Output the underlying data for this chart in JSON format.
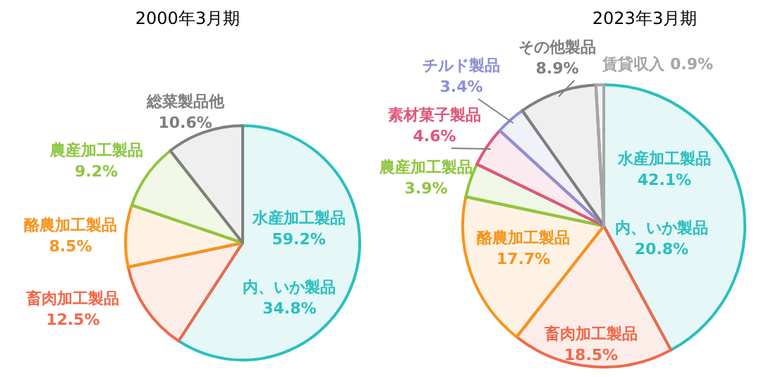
{
  "chart_data": [
    {
      "type": "pie",
      "title": "2000年3月期",
      "categories": [
        "水産加工製品",
        "畜肉加工製品",
        "酪農加工製品",
        "農産加工製品",
        "総菜製品他"
      ],
      "values": [
        59.2,
        12.5,
        8.5,
        9.2,
        10.6
      ],
      "colors": [
        "#2bbfbf",
        "#f0694b",
        "#f7941d",
        "#8dc63f",
        "#7f7f7f"
      ],
      "value_labels": [
        "59.2%",
        "12.5%",
        "8.5%",
        "9.2%",
        "10.6%"
      ],
      "annotations": [
        "内、いか製品\n34.8%"
      ]
    },
    {
      "type": "pie",
      "title": "2023年3月期",
      "categories": [
        "水産加工製品",
        "畜肉加工製品",
        "酪農加工製品",
        "農産加工製品",
        "素材菓子製品",
        "チルド製品",
        "その他製品",
        "賃貸収入"
      ],
      "values": [
        42.1,
        18.5,
        17.7,
        3.9,
        4.6,
        3.4,
        8.9,
        0.9
      ],
      "colors": [
        "#2bbfbf",
        "#f0694b",
        "#f7941d",
        "#8dc63f",
        "#e0567a",
        "#8e8fd6",
        "#7f7f7f",
        "#a6a6a6"
      ],
      "value_labels": [
        "42.1%",
        "18.5%",
        "17.7%",
        "3.9%",
        "4.6%",
        "3.4%",
        "8.9%",
        "0.9%"
      ],
      "annotations": [
        "内、いか製品\n20.8%"
      ]
    }
  ]
}
